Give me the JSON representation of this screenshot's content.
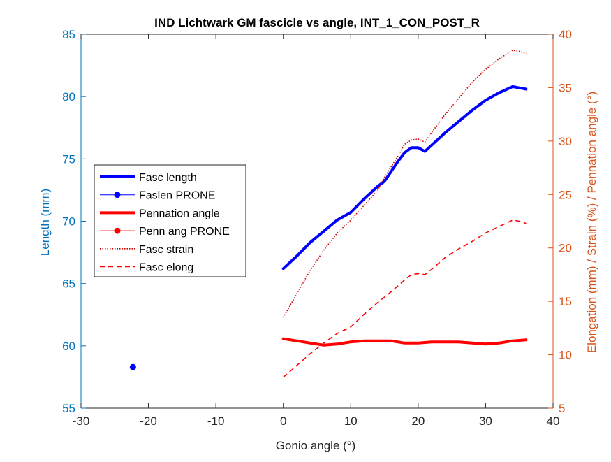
{
  "chart_data": {
    "type": "line",
    "title": "IND Lichtwark GM fascicle vs angle, INT_1_CON_POST_R",
    "xlabel": "Gonio angle (°)",
    "ylabel_left": "Length (mm)",
    "ylabel_right": "Elongation (mm) / Strain (%) / Pennation angle (°)",
    "xlim": [
      -30,
      40
    ],
    "ylim_left": [
      55,
      85
    ],
    "ylim_right": [
      5,
      40
    ],
    "xticks": [
      -30,
      -20,
      -10,
      0,
      10,
      20,
      30,
      40
    ],
    "yticks_left": [
      55,
      60,
      65,
      70,
      75,
      80,
      85
    ],
    "yticks_right": [
      5,
      10,
      15,
      20,
      25,
      30,
      35,
      40
    ],
    "grid": false,
    "legend_position": "left-middle",
    "colors": {
      "left_axis": "#0072BD",
      "right_axis": "#D95319",
      "fasc_length": "#0000FF",
      "pennation": "#FF0000",
      "strain": "#CC0000",
      "elong": "#FF0000"
    },
    "series": [
      {
        "name": "Fasc length",
        "axis": "left",
        "style": "thick-solid",
        "x": [
          0,
          2,
          4,
          6,
          8,
          10,
          12,
          14,
          15,
          16,
          17,
          18,
          19,
          20,
          21,
          22,
          24,
          26,
          28,
          30,
          32,
          34,
          35,
          36
        ],
        "y": [
          66.2,
          67.2,
          68.3,
          69.2,
          70.1,
          70.7,
          71.8,
          72.8,
          73.2,
          74.0,
          74.8,
          75.5,
          75.9,
          75.9,
          75.6,
          76.1,
          77.1,
          78.0,
          78.9,
          79.7,
          80.3,
          80.8,
          80.7,
          80.6
        ]
      },
      {
        "name": "Faslen PRONE",
        "axis": "left",
        "style": "marker",
        "x": [
          -22.3
        ],
        "y": [
          58.3
        ]
      },
      {
        "name": "Pennation angle",
        "axis": "right",
        "style": "thick-solid",
        "x": [
          0,
          2,
          4,
          6,
          8,
          10,
          12,
          14,
          16,
          18,
          20,
          22,
          24,
          26,
          28,
          30,
          32,
          34,
          36
        ],
        "y": [
          11.5,
          11.3,
          11.1,
          10.9,
          11.0,
          11.2,
          11.3,
          11.3,
          11.3,
          11.1,
          11.1,
          11.2,
          11.2,
          11.2,
          11.1,
          11.0,
          11.1,
          11.3,
          11.4
        ]
      },
      {
        "name": "Penn ang PRONE",
        "axis": "right",
        "style": "marker-line",
        "x": [],
        "y": []
      },
      {
        "name": "Fasc strain",
        "axis": "right",
        "style": "dotted",
        "x": [
          0,
          2,
          4,
          6,
          8,
          10,
          12,
          14,
          15,
          16,
          17,
          18,
          19,
          20,
          21,
          22,
          24,
          26,
          28,
          30,
          32,
          34,
          35,
          36
        ],
        "y": [
          13.5,
          15.7,
          17.9,
          19.8,
          21.4,
          22.6,
          24.0,
          25.4,
          26.6,
          27.6,
          28.6,
          29.7,
          30.1,
          30.2,
          29.9,
          30.8,
          32.5,
          34.0,
          35.5,
          36.7,
          37.7,
          38.5,
          38.4,
          38.2
        ]
      },
      {
        "name": "Fasc elong",
        "axis": "right",
        "style": "dashed",
        "x": [
          0,
          2,
          4,
          6,
          8,
          10,
          12,
          14,
          16,
          18,
          19,
          20,
          21,
          22,
          24,
          26,
          28,
          30,
          32,
          34,
          35,
          36
        ],
        "y": [
          7.9,
          9.0,
          10.1,
          11.1,
          12.0,
          12.6,
          13.8,
          14.9,
          15.9,
          17.0,
          17.5,
          17.6,
          17.5,
          18.0,
          19.1,
          19.9,
          20.6,
          21.4,
          22.0,
          22.6,
          22.5,
          22.3
        ]
      }
    ]
  }
}
